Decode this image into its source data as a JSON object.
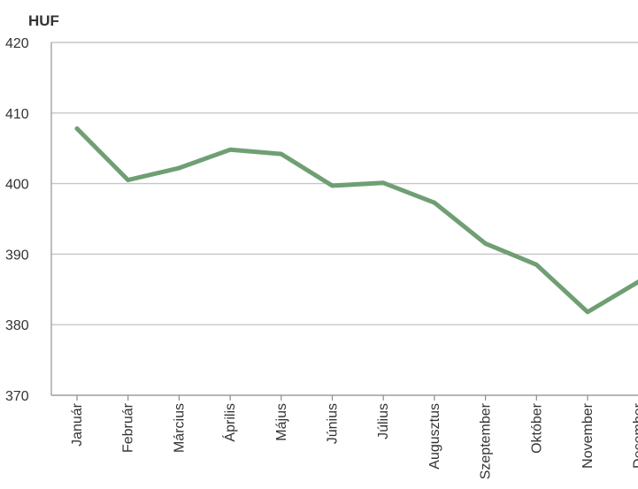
{
  "chart_data": {
    "type": "line",
    "title": "",
    "ylabel": "HUF",
    "xlabel": "",
    "categories": [
      "Január",
      "Február",
      "Március",
      "Április",
      "Május",
      "Június",
      "Július",
      "Augusztus",
      "Szeptember",
      "Október",
      "November",
      "December"
    ],
    "series": [
      {
        "values": [
          407.8,
          400.5,
          402.2,
          404.8,
          404.2,
          399.7,
          400.1,
          397.3,
          391.5,
          388.5,
          381.8,
          386.1
        ]
      }
    ],
    "ylim": [
      370,
      420
    ],
    "yticks": [
      370,
      380,
      390,
      400,
      410,
      420
    ],
    "grid": true,
    "legend": "none",
    "line_color": "#6f9f73"
  }
}
